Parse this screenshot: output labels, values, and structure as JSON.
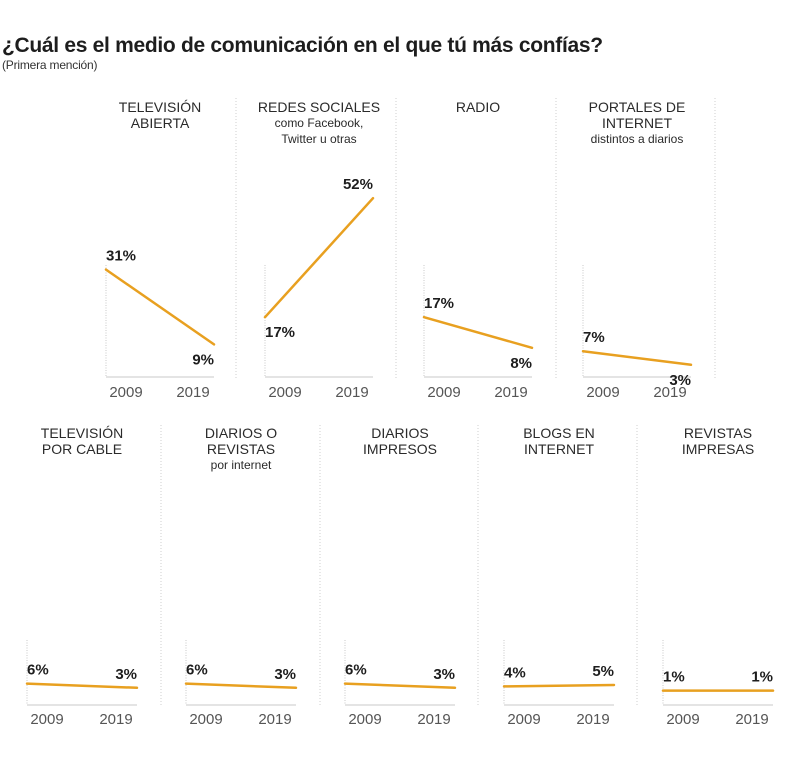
{
  "title": "¿Cuál es el medio de comunicación en el que tú más confías?",
  "subtitle": "(Primera mención)",
  "colors": {
    "line": "#e8a020",
    "divider": "#cfcfcf",
    "axis": "#c8c8c8"
  },
  "chart_data": {
    "type": "line",
    "x": [
      "2009",
      "2019"
    ],
    "y_unit": "%",
    "grid": false,
    "panels": [
      {
        "label": [
          "TELEVISIÓN",
          "ABIERTA"
        ],
        "sublabel": [],
        "values": [
          31,
          9
        ],
        "display": [
          "31%",
          "9%"
        ]
      },
      {
        "label": [
          "REDES SOCIALES"
        ],
        "sublabel": [
          "como Facebook,",
          "Twitter u otras"
        ],
        "values": [
          17,
          52
        ],
        "display": [
          "17%",
          "52%"
        ]
      },
      {
        "label": [
          "RADIO"
        ],
        "sublabel": [],
        "values": [
          17,
          8
        ],
        "display": [
          "17%",
          "8%"
        ]
      },
      {
        "label": [
          "PORTALES DE",
          "INTERNET"
        ],
        "sublabel": [
          "distintos a diarios"
        ],
        "values": [
          7,
          3
        ],
        "display": [
          "7%",
          "3%"
        ]
      },
      {
        "label": [
          "TELEVISIÓN",
          "POR CABLE"
        ],
        "sublabel": [],
        "values": [
          6,
          3
        ],
        "display": [
          "6%",
          "3%"
        ]
      },
      {
        "label": [
          "DIARIOS O",
          "REVISTAS"
        ],
        "sublabel": [
          "por internet"
        ],
        "values": [
          6,
          3
        ],
        "display": [
          "6%",
          "3%"
        ]
      },
      {
        "label": [
          "DIARIOS",
          "IMPRESOS"
        ],
        "sublabel": [],
        "values": [
          6,
          3
        ],
        "display": [
          "6%",
          "3%"
        ]
      },
      {
        "label": [
          "BLOGS EN",
          "INTERNET"
        ],
        "sublabel": [],
        "values": [
          4,
          5
        ],
        "display": [
          "4%",
          "5%"
        ]
      },
      {
        "label": [
          "REVISTAS",
          "IMPRESAS"
        ],
        "sublabel": [],
        "values": [
          1,
          1
        ],
        "display": [
          "1%",
          "1%"
        ]
      }
    ]
  }
}
